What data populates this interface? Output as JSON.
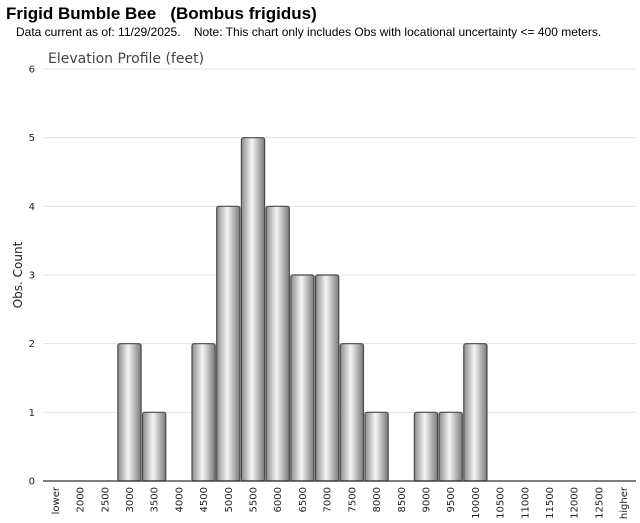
{
  "header": {
    "title": "Frigid Bumble Bee   (Bombus frigidus)",
    "subtitle": "Data current as of: 11/29/2025.    Note: This chart only includes Obs with locational uncertainty <= 400 meters."
  },
  "chart_data": {
    "type": "bar",
    "title": "Elevation Profile (feet)",
    "xlabel": "",
    "ylabel": "Obs. Count",
    "ylim": [
      0,
      6
    ],
    "yticks": [
      "0",
      "1",
      "2",
      "3",
      "4",
      "5",
      "6"
    ],
    "grid": true,
    "legend": "none",
    "categories": [
      "lower",
      "2000",
      "2500",
      "3000",
      "3500",
      "4000",
      "4500",
      "5000",
      "5500",
      "6000",
      "6500",
      "7000",
      "7500",
      "8000",
      "8500",
      "9000",
      "9500",
      "10000",
      "10500",
      "11000",
      "11500",
      "12000",
      "12500",
      "higher"
    ],
    "values": [
      0,
      0,
      0,
      2,
      1,
      0,
      2,
      4,
      5,
      4,
      3,
      3,
      2,
      1,
      0,
      1,
      1,
      2,
      0,
      0,
      0,
      0,
      0,
      0
    ],
    "colors": {
      "bar_light": "#f4f4f4",
      "bar_dark": "#8a8a8a",
      "bar_edge": "#4a4a4a",
      "grid": "#e3e3e3",
      "axis": "#333333"
    }
  }
}
